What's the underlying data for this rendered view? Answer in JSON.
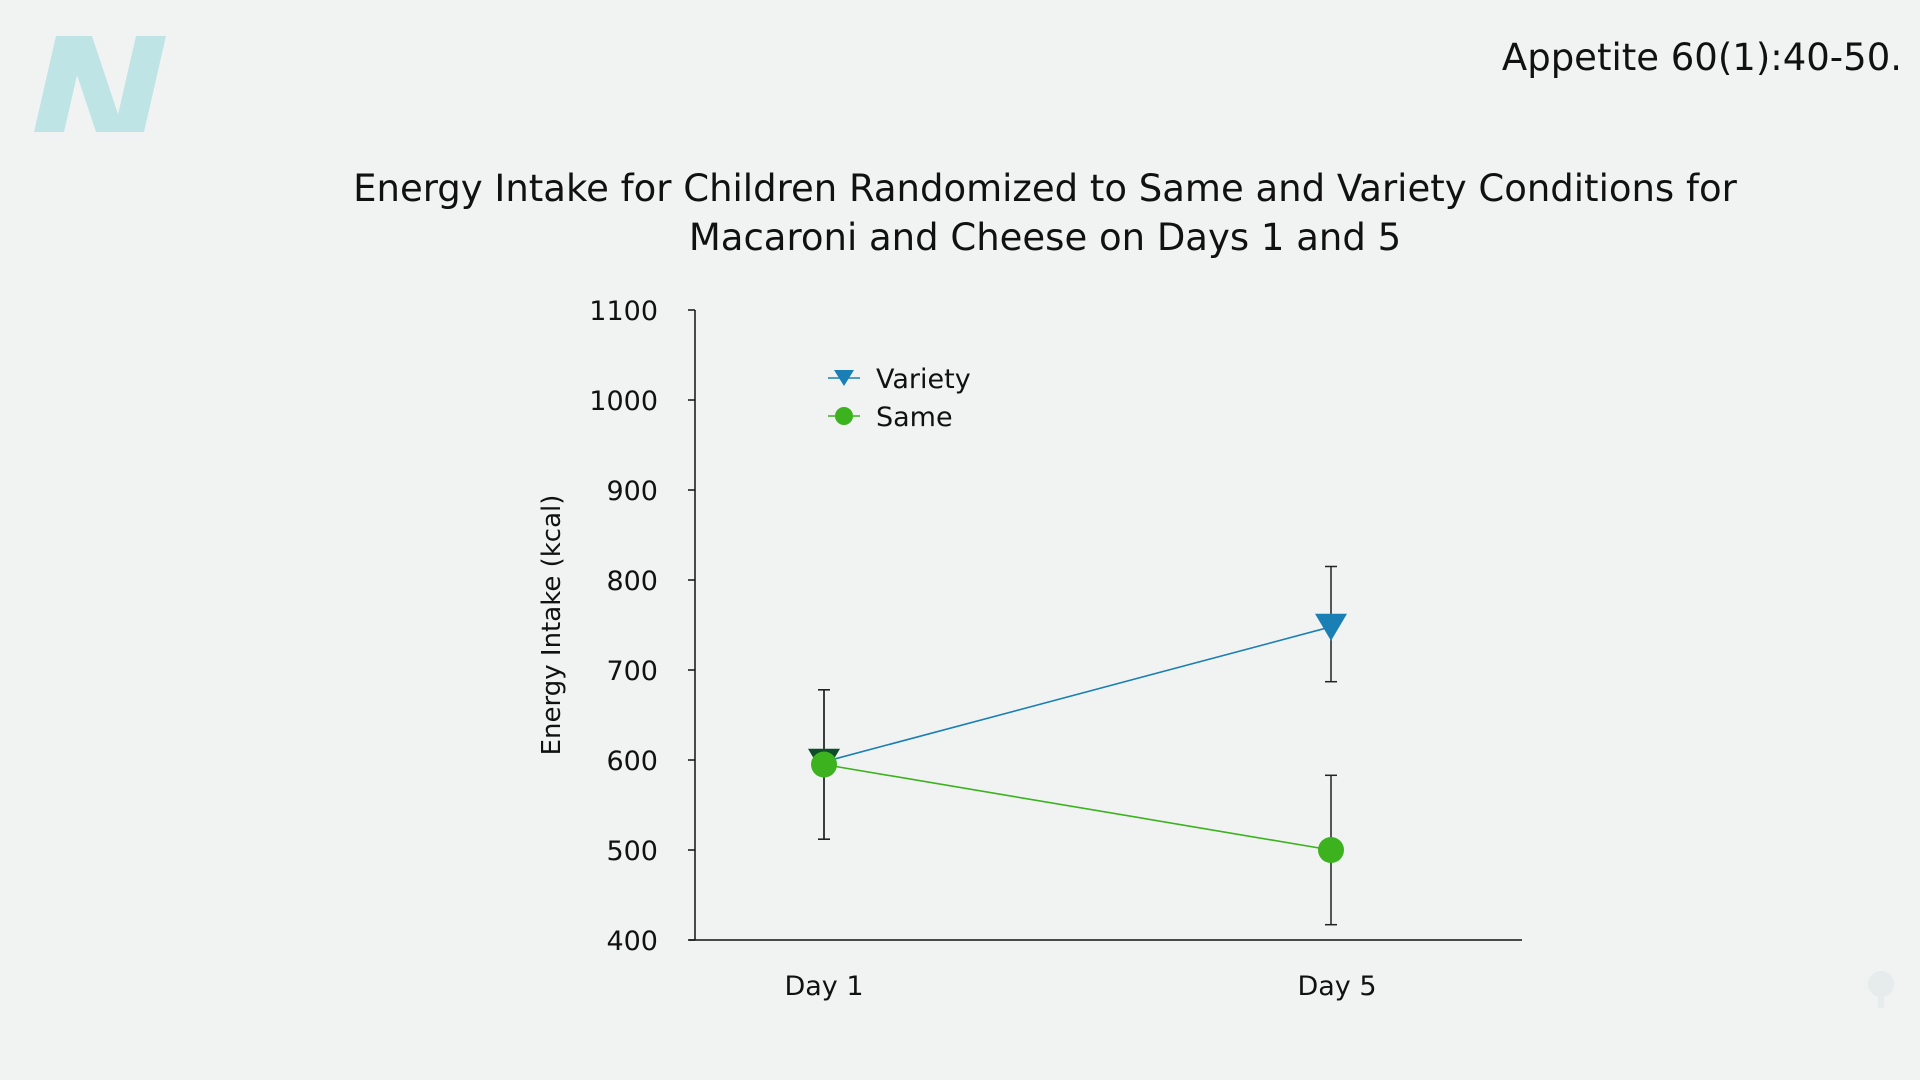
{
  "citation": "Appetite 60(1):40-50.",
  "colors": {
    "variety": "#1a7fb4",
    "same": "#3bb21e",
    "axis": "#111111",
    "logo": "#bfe4e5"
  },
  "chart_data": {
    "type": "line",
    "title_lines": [
      "Energy Intake for Children Randomized to Same and Variety Conditions for",
      "Macaroni and Cheese on Days 1 and 5"
    ],
    "xlabel": "",
    "ylabel": "Energy Intake (kcal)",
    "categories": [
      "Day 1",
      "Day 5"
    ],
    "ylim": [
      400,
      1100
    ],
    "yticks": [
      400,
      500,
      600,
      700,
      800,
      900,
      1000,
      1100
    ],
    "grid": false,
    "legend_position": "top-left",
    "series": [
      {
        "name": "Variety",
        "marker": "triangle-down",
        "values": [
          598,
          748
        ],
        "error_low": [
          512,
          687
        ],
        "error_high": [
          678,
          815
        ]
      },
      {
        "name": "Same",
        "marker": "circle",
        "values": [
          595,
          500
        ],
        "error_low": [
          512,
          417
        ],
        "error_high": [
          678,
          583
        ]
      }
    ]
  }
}
